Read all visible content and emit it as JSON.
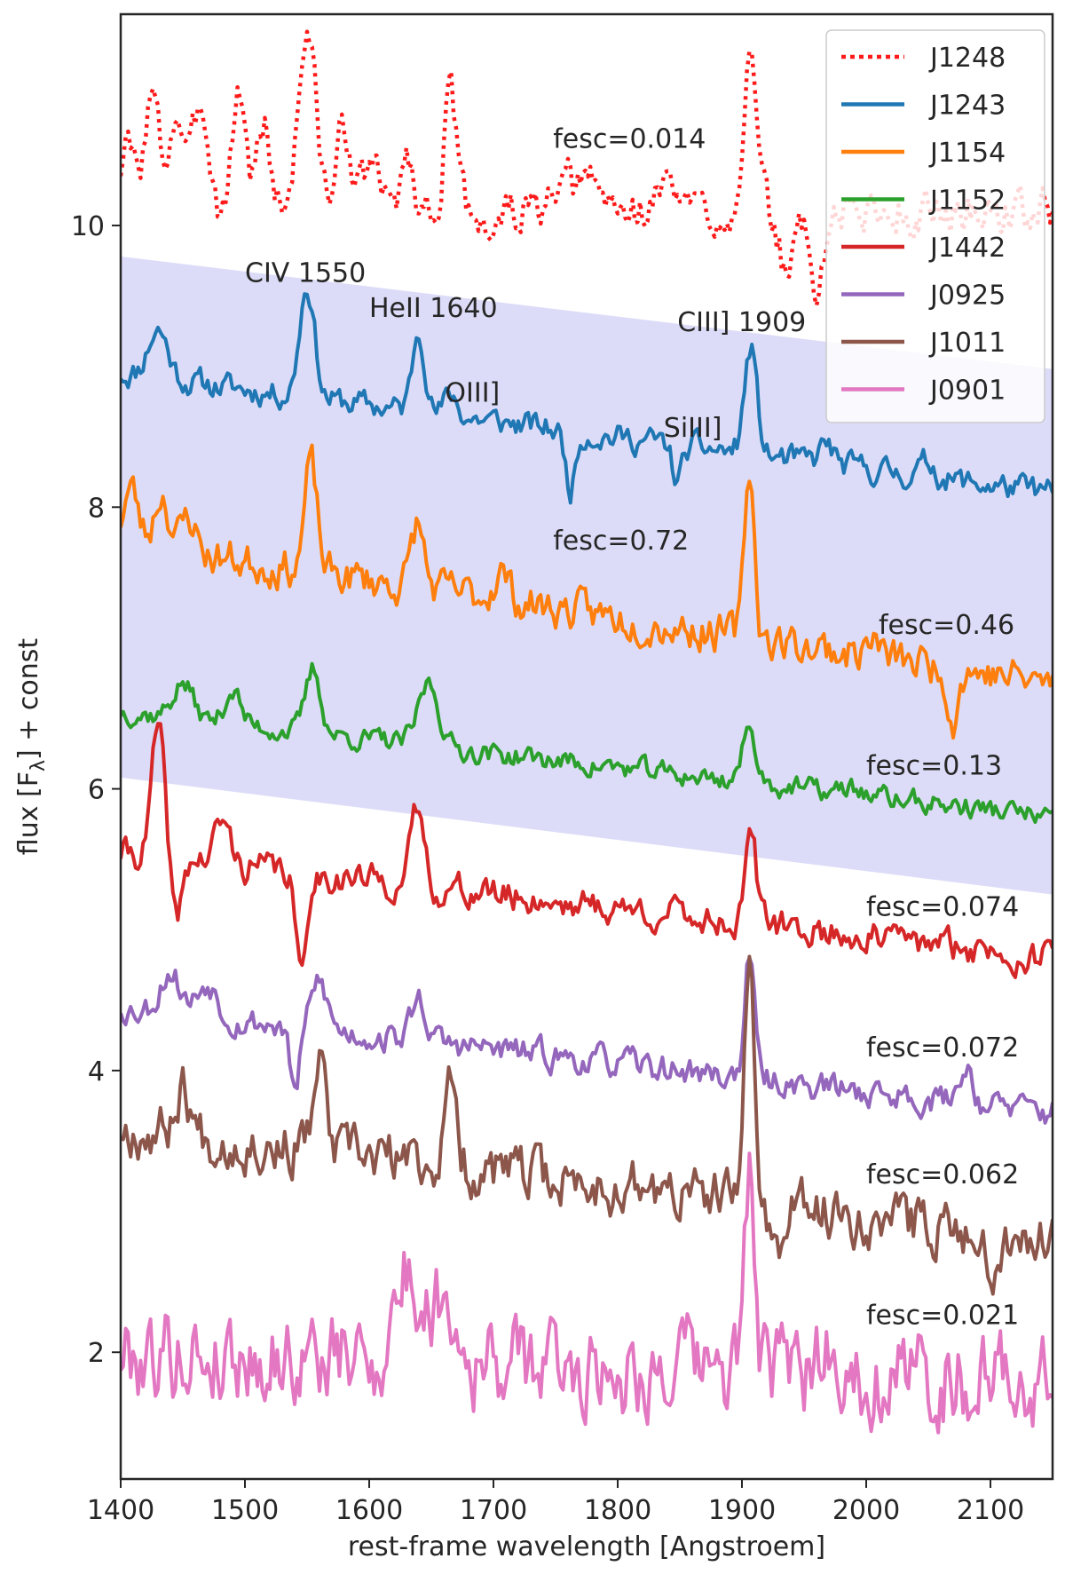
{
  "chart_data": {
    "type": "line",
    "title": "",
    "xlabel": "rest-frame wavelength [Angstroem]",
    "ylabel_prefix": "flux [F",
    "ylabel_sub": "λ",
    "ylabel_suffix": "] + const",
    "xlim": [
      1400,
      2150
    ],
    "ylim": [
      1.1,
      11.5
    ],
    "xticks": [
      1400,
      1500,
      1600,
      1700,
      1800,
      1900,
      2000,
      2100
    ],
    "yticks": [
      2,
      4,
      6,
      8,
      10
    ],
    "shaded_band": {
      "color": "#dcdcf8",
      "upper": [
        [
          1400,
          9.78
        ],
        [
          2150,
          8.98
        ]
      ],
      "lower": [
        [
          1400,
          6.08
        ],
        [
          2150,
          5.25
        ]
      ]
    },
    "legend_position": "top-right",
    "series": [
      {
        "name": "J1248",
        "color": "#ff1a1a",
        "style": "dotted",
        "fesc": "fesc=0.014",
        "fesc_x": 1748,
        "fesc_y": 10.55,
        "base": 10.1,
        "tilt": 0.0,
        "noise": 0.18,
        "seed": 3,
        "lines": [
          [
            1405,
            0.45,
            6
          ],
          [
            1425,
            0.8,
            6
          ],
          [
            1445,
            0.7,
            6
          ],
          [
            1465,
            0.8,
            6
          ],
          [
            1495,
            0.9,
            5
          ],
          [
            1515,
            0.6,
            6
          ],
          [
            1550,
            1.3,
            7
          ],
          [
            1580,
            0.6,
            6
          ],
          [
            1602,
            0.35,
            6
          ],
          [
            1630,
            0.4,
            5
          ],
          [
            1665,
            0.8,
            5
          ],
          [
            1700,
            -0.15,
            5
          ],
          [
            1760,
            0.15,
            8
          ],
          [
            1780,
            0.2,
            8
          ],
          [
            1840,
            0.2,
            8
          ],
          [
            1906,
            1.1,
            5
          ],
          [
            1935,
            -0.4,
            6
          ],
          [
            1960,
            -0.55,
            6
          ]
        ]
      },
      {
        "name": "J1243",
        "color": "#1f77b4",
        "style": "solid",
        "fesc": "fesc=0.72",
        "fesc_x": 1748,
        "fesc_y": 7.7,
        "base": 8.95,
        "tilt": -0.85,
        "noise": 0.11,
        "seed": 11,
        "lines": [
          [
            1430,
            0.35,
            8
          ],
          [
            1550,
            0.8,
            6
          ],
          [
            1640,
            0.6,
            5
          ],
          [
            1666,
            0.15,
            5
          ],
          [
            1762,
            -0.4,
            4
          ],
          [
            1848,
            -0.25,
            4
          ],
          [
            1907,
            0.75,
            5
          ],
          [
            1968,
            0.15,
            5
          ],
          [
            2050,
            0.1,
            6
          ]
        ]
      },
      {
        "name": "J1154",
        "color": "#ff7f0e",
        "style": "solid",
        "fesc": "fesc=0.46",
        "fesc_x": 2010,
        "fesc_y": 7.1,
        "base": 7.75,
        "tilt": -1.0,
        "noise": 0.16,
        "seed": 23,
        "lines": [
          [
            1408,
            0.4,
            6
          ],
          [
            1433,
            0.4,
            6
          ],
          [
            1455,
            0.25,
            6
          ],
          [
            1553,
            0.75,
            5
          ],
          [
            1639,
            0.45,
            5
          ],
          [
            1706,
            0.2,
            6
          ],
          [
            1906,
            1.2,
            4
          ],
          [
            2005,
            0.1,
            6
          ],
          [
            2070,
            -0.35,
            4
          ]
        ]
      },
      {
        "name": "J1152",
        "color": "#2ca02c",
        "style": "solid",
        "fesc": "fesc=0.13",
        "fesc_x": 2000,
        "fesc_y": 6.1,
        "base": 6.55,
        "tilt": -0.75,
        "noise": 0.09,
        "seed": 37,
        "lines": [
          [
            1450,
            0.25,
            8
          ],
          [
            1490,
            0.25,
            6
          ],
          [
            1555,
            0.45,
            6
          ],
          [
            1648,
            0.45,
            8
          ],
          [
            1906,
            0.35,
            6
          ],
          [
            1990,
            0.05,
            6
          ]
        ]
      },
      {
        "name": "J1442",
        "color": "#d62728",
        "style": "solid",
        "fesc": "fesc=0.074",
        "fesc_x": 2000,
        "fesc_y": 5.1,
        "base": 5.55,
        "tilt": -0.75,
        "noise": 0.13,
        "seed": 41,
        "lines": [
          [
            1430,
            0.9,
            5
          ],
          [
            1445,
            -0.45,
            4
          ],
          [
            1482,
            0.3,
            6
          ],
          [
            1545,
            -0.75,
            4
          ],
          [
            1639,
            0.55,
            5
          ],
          [
            1907,
            0.75,
            4
          ]
        ]
      },
      {
        "name": "J0925",
        "color": "#9467bd",
        "style": "solid",
        "fesc": "fesc=0.072",
        "fesc_x": 2000,
        "fesc_y": 4.1,
        "base": 4.45,
        "tilt": -0.75,
        "noise": 0.12,
        "seed": 53,
        "lines": [
          [
            1440,
            0.3,
            8
          ],
          [
            1470,
            0.25,
            8
          ],
          [
            1540,
            -0.45,
            4
          ],
          [
            1560,
            0.35,
            6
          ],
          [
            1640,
            0.3,
            6
          ],
          [
            1906,
            0.85,
            4
          ],
          [
            2080,
            0.25,
            6
          ]
        ]
      },
      {
        "name": "J1011",
        "color": "#8c564b",
        "style": "solid",
        "fesc": "fesc=0.062",
        "fesc_x": 2000,
        "fesc_y": 3.2,
        "base": 3.6,
        "tilt": -0.8,
        "noise": 0.22,
        "seed": 67,
        "lines": [
          [
            1450,
            0.35,
            6
          ],
          [
            1560,
            0.6,
            5
          ],
          [
            1666,
            0.55,
            5
          ],
          [
            1906,
            1.65,
            4
          ],
          [
            1930,
            -0.35,
            5
          ],
          [
            2100,
            -0.3,
            4
          ]
        ]
      },
      {
        "name": "J0901",
        "color": "#e377c2",
        "style": "solid",
        "fesc": "fesc=0.021",
        "fesc_x": 2000,
        "fesc_y": 2.2,
        "base": 2.0,
        "tilt": -0.2,
        "noise": 0.38,
        "seed": 79,
        "lines": [
          [
            1630,
            0.6,
            10
          ],
          [
            1660,
            0.5,
            10
          ],
          [
            1906,
            1.45,
            4
          ],
          [
            1970,
            0.25,
            6
          ]
        ]
      }
    ],
    "line_labels": [
      {
        "text": "CIV 1550",
        "x": 1500,
        "y": 9.6
      },
      {
        "text": "HeII 1640",
        "x": 1600,
        "y": 9.35
      },
      {
        "text": "OIII]",
        "x": 1661,
        "y": 8.75
      },
      {
        "text": "CIII] 1909",
        "x": 1848,
        "y": 9.25
      },
      {
        "text": "SiIII]",
        "x": 1837,
        "y": 8.5
      }
    ]
  }
}
